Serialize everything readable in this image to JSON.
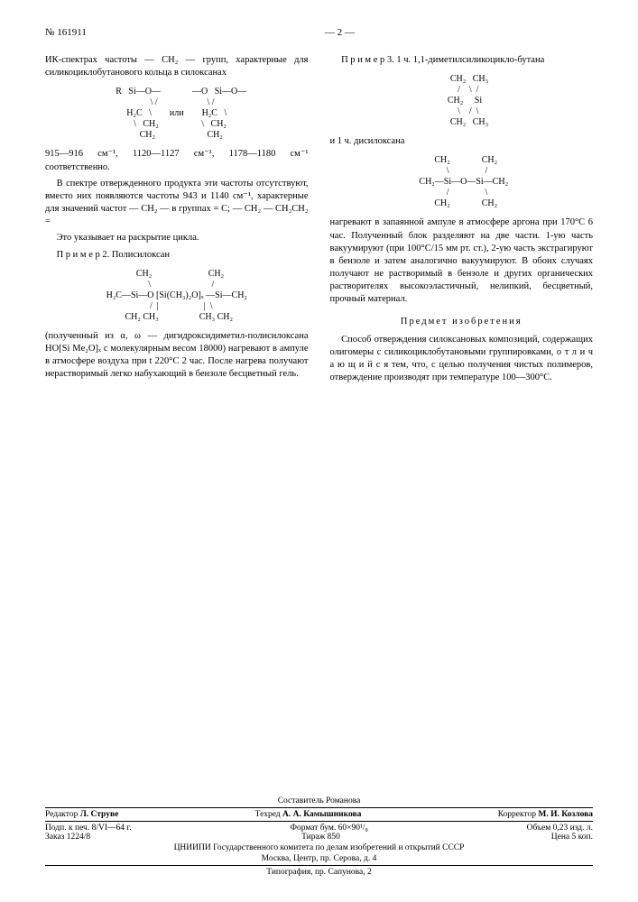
{
  "header": {
    "doc_number": "№ 161911",
    "page_marker": "— 2 —"
  },
  "left": {
    "p1": "ИК-спектрах частоты — CH₂ — групп, характерные для силикоциклобутанового кольца в силоксанах",
    "formula1": "    R   Si—O—              —O   Si—O—\n     \\ /                      \\ /\nH₂C   \\        или        H₂C   \\\n   \\   CH₂                   \\   CH₂\n    CH₂                       CH₂",
    "p2": "915—916 см⁻¹, 1120—1127 см⁻¹, 1178—1180 см⁻¹ соответственно.",
    "p3": "В спектре отвержденного продукта эти частоты отсутствуют, вместо них появляются частоты 943 и 1140 см⁻¹, характерные для значений частот — CH₂ — в группах = C; — CH₂ — CH₂CH₂ =",
    "p4": "Это указывает на раскрытие цикла.",
    "p5_label": "П р и м е р 2. Полисилоксан",
    "formula2": "   CH₂                         CH₂\n    \\                           /\nH₂C—Si—O [Si(CH₃)₂O]ₓ —Si—CH₂\n    /  |                    |  \\\n  CH₂ CH₃                  CH₃ CH₂",
    "p6": "(полученный из α, ω — дигидроксидиметил-полисилоксана HO[Si Me₂O]ₓ с молекулярным весом 18000) нагревают в ампуле в атмосфере воздуха при t 220°C 2 час. После нагрева получают нерастворимый легко набухающий в бензоле бесцветный гель."
  },
  "right": {
    "p1_label": "П р и м е р 3. 1 ч. 1,1-диметилсиликоцикло-бутана",
    "formula1": "       CH₂   CH₃\n      /    \\  /\n   CH₂     Si\n      \\    /  \\\n       CH₂   CH₃",
    "p2": "и 1 ч. дисилоксана",
    "formula2": "    CH₂              CH₂\n     \\                /\n  CH₂—Si—O—Si—CH₂\n     /                \\\n    CH₂              CH₂",
    "p3": "нагревают в запаянной ампуле в атмосфере аргона при 170°C 6 час. Полученный блок разделяют на две части. 1-ую часть вакуумируют (при 100°C/15 мм рт. ст.), 2-ую часть экстрагируют в бензоле и затем аналогично вакуумируют. В обоих случаях получают не растворимый в бензоле и других органических растворителях высокоэластичный, нелипкий, бесцветный, прочный материал.",
    "subject_heading": "Предмет изобретения",
    "p4": "Способ отверждения силоксановых композиций, содержащих олигомеры с силикоциклобутановыми группировками, о т л и ч а ю щ и й с я тем, что, с целью получения чистых полимеров, отверждение производят при температуре 100—300°C."
  },
  "footer": {
    "composer": "Составитель Романова",
    "editor_label": "Редактор",
    "editor": "Л. Струве",
    "techred_label": "Техред",
    "techred": "А. А. Камышникова",
    "corrector_label": "Корректор",
    "corrector": "М. И. Козлова",
    "sign_date": "Подп. к печ. 8/VI—64 г.",
    "format": "Формат бум. 60×90¹/₈",
    "volume": "Объем 0,23 изд. л.",
    "order": "Заказ 1224/8",
    "tirazh": "Тираж 850",
    "price": "Цена 5 коп.",
    "org": "ЦНИИПИ Государственного комитета по делам изобретений и открытий СССР",
    "address": "Москва, Центр, пр. Серова, д. 4",
    "typography": "Типография, пр. Сапунова, 2"
  }
}
